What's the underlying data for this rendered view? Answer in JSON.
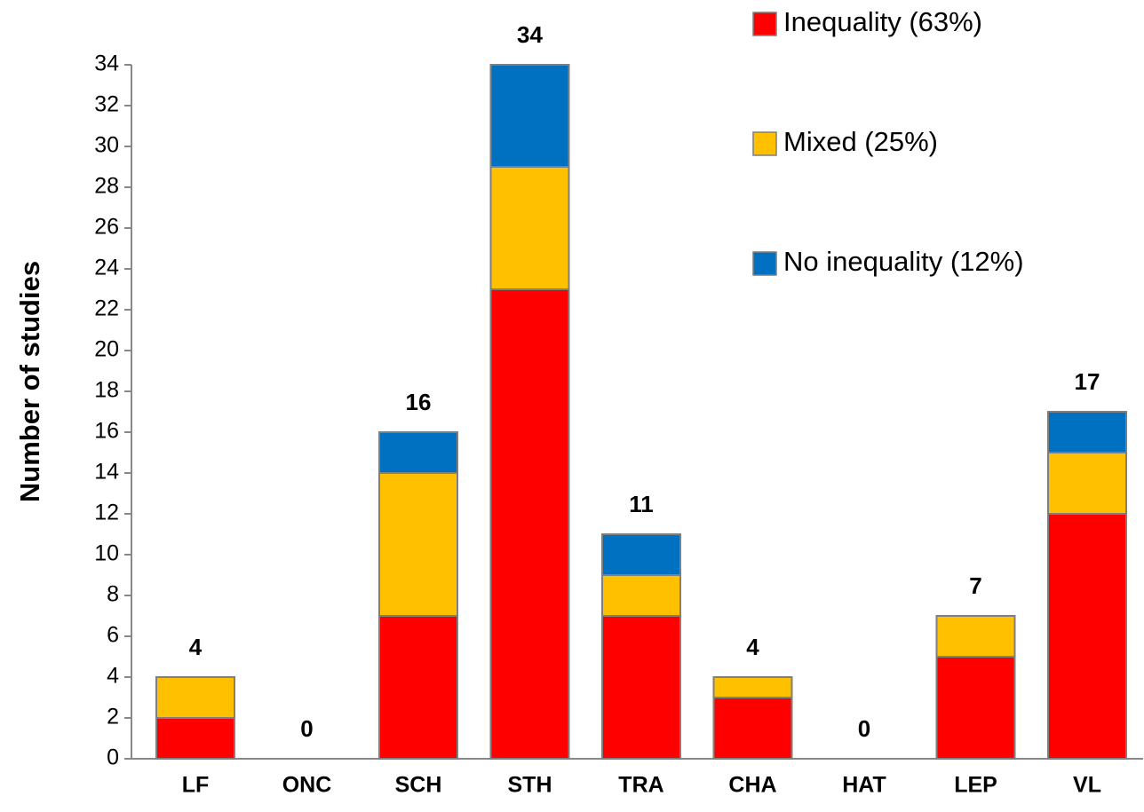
{
  "chart_data": {
    "type": "stacked_bar",
    "y_axis_label": "Number of studies",
    "categories": [
      "LF",
      "ONC",
      "SCH",
      "STH",
      "TRA",
      "CHA",
      "HAT",
      "LEP",
      "VL"
    ],
    "series": [
      {
        "name": "Inequality (63%)",
        "color": "#ff0000",
        "values": [
          2,
          0,
          7,
          23,
          7,
          3,
          0,
          5,
          12
        ]
      },
      {
        "name": "Mixed (25%)",
        "color": "#ffc000",
        "values": [
          2,
          0,
          7,
          6,
          2,
          1,
          0,
          2,
          3
        ]
      },
      {
        "name": "No inequality (12%)",
        "color": "#0070c0",
        "values": [
          0,
          0,
          2,
          5,
          2,
          0,
          0,
          0,
          2
        ]
      }
    ],
    "totals": [
      4,
      0,
      16,
      34,
      11,
      4,
      0,
      7,
      17
    ],
    "ylim": [
      0,
      34
    ],
    "yticks": [
      0,
      2,
      4,
      6,
      8,
      10,
      12,
      14,
      16,
      18,
      20,
      22,
      24,
      26,
      28,
      30,
      32,
      34
    ],
    "legend": "top-right"
  }
}
